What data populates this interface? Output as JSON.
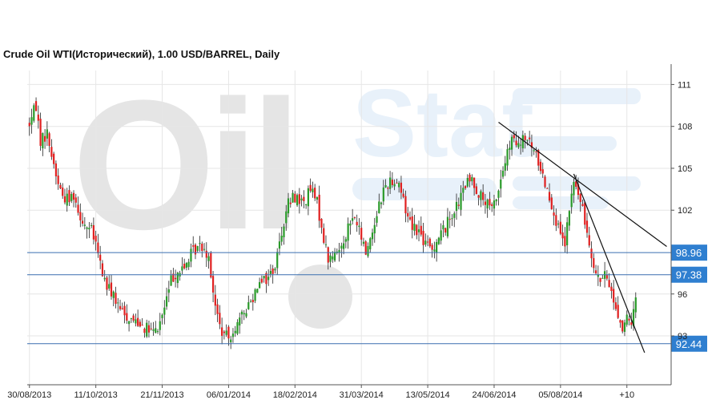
{
  "chart_data": {
    "type": "candlestick",
    "title": "Crude Oil WTI(Исторический), 1.00 USD/BARREL, Daily",
    "watermark": "OilStat",
    "y_ticks": [
      93,
      96,
      102,
      105,
      108,
      111
    ],
    "y_tick_labels": [
      "93",
      "96",
      "102",
      "105",
      "108",
      "111"
    ],
    "ylim": [
      89.5,
      112
    ],
    "x_labels": [
      "30/08/2013",
      "11/10/2013",
      "21/11/2013",
      "06/01/2014",
      "18/02/2014",
      "31/03/2014",
      "13/05/2014",
      "24/06/2014",
      "05/08/2014",
      "+10"
    ],
    "x_label_positions": [
      0,
      30,
      60,
      90,
      120,
      150,
      180,
      210,
      240,
      270
    ],
    "xlim": [
      -1,
      290
    ],
    "price_path": [
      [
        0,
        108.2
      ],
      [
        3,
        109.5
      ],
      [
        5,
        107.0
      ],
      [
        8,
        107.5
      ],
      [
        10,
        106.0
      ],
      [
        12,
        104.5
      ],
      [
        15,
        103.0
      ],
      [
        18,
        102.8
      ],
      [
        20,
        103.2
      ],
      [
        22,
        102.0
      ],
      [
        25,
        101.0
      ],
      [
        28,
        100.5
      ],
      [
        30,
        99.5
      ],
      [
        33,
        97.5
      ],
      [
        35,
        96.5
      ],
      [
        38,
        96.0
      ],
      [
        40,
        95.0
      ],
      [
        43,
        94.5
      ],
      [
        46,
        94.2
      ],
      [
        50,
        94.0
      ],
      [
        53,
        93.5
      ],
      [
        56,
        93.2
      ],
      [
        58,
        93.5
      ],
      [
        61,
        95.0
      ],
      [
        64,
        97.0
      ],
      [
        66,
        97.5
      ],
      [
        70,
        97.8
      ],
      [
        72,
        98.6
      ],
      [
        75,
        99.2
      ],
      [
        78,
        99.5
      ],
      [
        81,
        98.8
      ],
      [
        84,
        95.0
      ],
      [
        87,
        93.2
      ],
      [
        90,
        92.8
      ],
      [
        92,
        93.5
      ],
      [
        95,
        94.0
      ],
      [
        98,
        95.0
      ],
      [
        101,
        95.8
      ],
      [
        104,
        97.2
      ],
      [
        107,
        97.0
      ],
      [
        111,
        98.0
      ],
      [
        114,
        100.5
      ],
      [
        117,
        102.5
      ],
      [
        120,
        103.0
      ],
      [
        124,
        102.5
      ],
      [
        127,
        103.5
      ],
      [
        130,
        102.5
      ],
      [
        133,
        100.0
      ],
      [
        135,
        98.5
      ],
      [
        138,
        98.8
      ],
      [
        141,
        99.5
      ],
      [
        144,
        100.8
      ],
      [
        147,
        101.5
      ],
      [
        150,
        100.0
      ],
      [
        152,
        99.0
      ],
      [
        155,
        100.5
      ],
      [
        158,
        102.5
      ],
      [
        161,
        103.8
      ],
      [
        164,
        104.2
      ],
      [
        167,
        104.0
      ],
      [
        170,
        102.0
      ],
      [
        173,
        101.0
      ],
      [
        176,
        100.5
      ],
      [
        179,
        99.5
      ],
      [
        182,
        99.2
      ],
      [
        185,
        100.2
      ],
      [
        188,
        100.8
      ],
      [
        191,
        101.8
      ],
      [
        194,
        102.5
      ],
      [
        197,
        103.8
      ],
      [
        200,
        104.2
      ],
      [
        203,
        103.2
      ],
      [
        206,
        102.5
      ],
      [
        209,
        102.0
      ],
      [
        212,
        103.5
      ],
      [
        215,
        105.5
      ],
      [
        218,
        107.0
      ],
      [
        221,
        106.5
      ],
      [
        224,
        107.2
      ],
      [
        227,
        106.5
      ],
      [
        230,
        105.5
      ],
      [
        233,
        104.0
      ],
      [
        236,
        102.5
      ],
      [
        238,
        101.2
      ],
      [
        240,
        100.0
      ],
      [
        242,
        99.5
      ],
      [
        244,
        102.0
      ],
      [
        246,
        104.0
      ],
      [
        248,
        103.2
      ],
      [
        251,
        101.2
      ],
      [
        254,
        99.0
      ],
      [
        256,
        97.5
      ],
      [
        258,
        97.0
      ],
      [
        260,
        97.2
      ],
      [
        262,
        96.8
      ],
      [
        264,
        95.5
      ],
      [
        266,
        94.5
      ],
      [
        268,
        93.5
      ],
      [
        270,
        94.2
      ],
      [
        272,
        93.5
      ],
      [
        274,
        96.0
      ]
    ],
    "levels": [
      {
        "value": 98.96,
        "label": "98.96"
      },
      {
        "value": 97.38,
        "label": "97.38"
      },
      {
        "value": 92.44,
        "label": "92.44"
      }
    ],
    "trendlines": [
      {
        "from": [
          212,
          108.3
        ],
        "to": [
          288,
          99.4
        ]
      },
      {
        "from": [
          246,
          104.6
        ],
        "to": [
          278,
          91.8
        ]
      }
    ],
    "colors": {
      "up": "#2a9a2a",
      "down": "#e02020",
      "wick": "#222222",
      "level_line": "#3a6fb0",
      "level_box": "#2f7fd0",
      "trendline": "#111111",
      "grid": "#e6e6e6",
      "watermark_gray": "#e5e5e5",
      "watermark_blue": "#e8f1fa"
    }
  }
}
